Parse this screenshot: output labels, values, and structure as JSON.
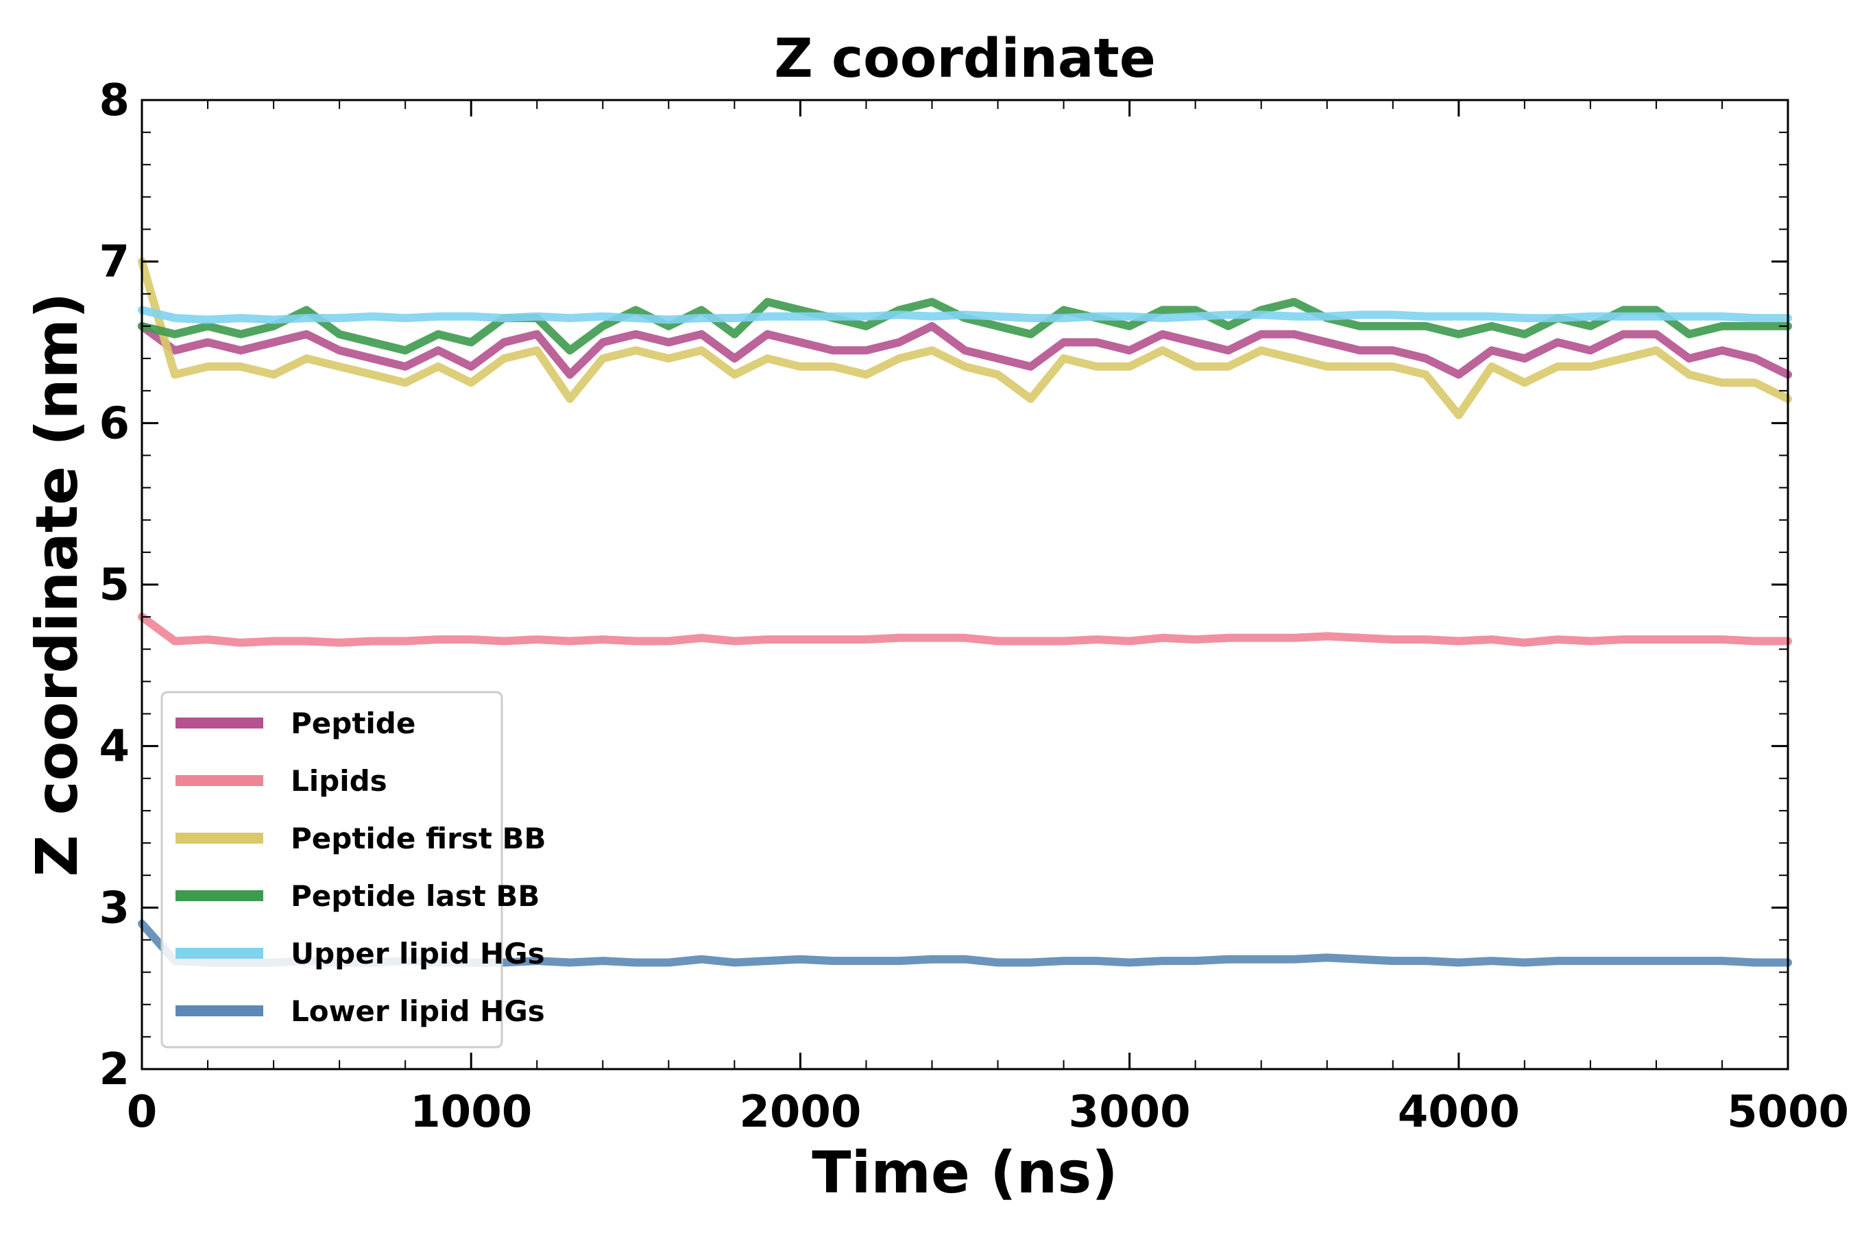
{
  "chart_data": {
    "type": "line",
    "title": "Z coordinate",
    "xlabel": "Time (ns)",
    "ylabel": "Z coordinate (nm)",
    "xlim": [
      0,
      5000
    ],
    "ylim": [
      2,
      8
    ],
    "x_ticks": [
      0,
      1000,
      2000,
      3000,
      4000,
      5000
    ],
    "y_ticks": [
      2,
      3,
      4,
      5,
      6,
      7,
      8
    ],
    "x_tick_labels": [
      "0",
      "1000",
      "2000",
      "3000",
      "4000",
      "5000"
    ],
    "y_tick_labels": [
      "2",
      "3",
      "4",
      "5",
      "6",
      "7",
      "8"
    ],
    "grid": false,
    "legend_position": "lower-left",
    "x": [
      0,
      100,
      200,
      300,
      400,
      500,
      600,
      700,
      800,
      900,
      1000,
      1100,
      1200,
      1300,
      1400,
      1500,
      1600,
      1700,
      1800,
      1900,
      2000,
      2100,
      2200,
      2300,
      2400,
      2500,
      2600,
      2700,
      2800,
      2900,
      3000,
      3100,
      3200,
      3300,
      3400,
      3500,
      3600,
      3700,
      3800,
      3900,
      4000,
      4100,
      4200,
      4300,
      4400,
      4500,
      4600,
      4700,
      4800,
      4900,
      5000
    ],
    "series": [
      {
        "name": "Peptide",
        "color": "#b5528f",
        "values": [
          6.6,
          6.45,
          6.5,
          6.45,
          6.5,
          6.55,
          6.45,
          6.4,
          6.35,
          6.45,
          6.35,
          6.5,
          6.55,
          6.3,
          6.5,
          6.55,
          6.5,
          6.55,
          6.4,
          6.55,
          6.5,
          6.45,
          6.45,
          6.5,
          6.6,
          6.45,
          6.4,
          6.35,
          6.5,
          6.5,
          6.45,
          6.55,
          6.5,
          6.45,
          6.55,
          6.55,
          6.5,
          6.45,
          6.45,
          6.4,
          6.3,
          6.45,
          6.4,
          6.5,
          6.45,
          6.55,
          6.55,
          6.4,
          6.45,
          6.4,
          6.3
        ]
      },
      {
        "name": "Lipids",
        "color": "#f08497",
        "values": [
          4.8,
          4.65,
          4.66,
          4.64,
          4.65,
          4.65,
          4.64,
          4.65,
          4.65,
          4.66,
          4.66,
          4.65,
          4.66,
          4.65,
          4.66,
          4.65,
          4.65,
          4.67,
          4.65,
          4.66,
          4.66,
          4.66,
          4.66,
          4.67,
          4.67,
          4.67,
          4.65,
          4.65,
          4.65,
          4.66,
          4.65,
          4.67,
          4.66,
          4.67,
          4.67,
          4.67,
          4.68,
          4.67,
          4.66,
          4.66,
          4.65,
          4.66,
          4.64,
          4.66,
          4.65,
          4.66,
          4.66,
          4.66,
          4.66,
          4.65,
          4.65
        ]
      },
      {
        "name": "Peptide first BB",
        "color": "#d9c96a",
        "values": [
          7.0,
          6.3,
          6.35,
          6.35,
          6.3,
          6.4,
          6.35,
          6.3,
          6.25,
          6.35,
          6.25,
          6.4,
          6.45,
          6.15,
          6.4,
          6.45,
          6.4,
          6.45,
          6.3,
          6.4,
          6.35,
          6.35,
          6.3,
          6.4,
          6.45,
          6.35,
          6.3,
          6.15,
          6.4,
          6.35,
          6.35,
          6.45,
          6.35,
          6.35,
          6.45,
          6.4,
          6.35,
          6.35,
          6.35,
          6.3,
          6.05,
          6.35,
          6.25,
          6.35,
          6.35,
          6.4,
          6.45,
          6.3,
          6.25,
          6.25,
          6.15
        ]
      },
      {
        "name": "Peptide last BB",
        "color": "#3e9a4e",
        "values": [
          6.6,
          6.55,
          6.6,
          6.55,
          6.6,
          6.7,
          6.55,
          6.5,
          6.45,
          6.55,
          6.5,
          6.65,
          6.65,
          6.45,
          6.6,
          6.7,
          6.6,
          6.7,
          6.55,
          6.75,
          6.7,
          6.65,
          6.6,
          6.7,
          6.75,
          6.65,
          6.6,
          6.55,
          6.7,
          6.65,
          6.6,
          6.7,
          6.7,
          6.6,
          6.7,
          6.75,
          6.65,
          6.6,
          6.6,
          6.6,
          6.55,
          6.6,
          6.55,
          6.65,
          6.6,
          6.7,
          6.7,
          6.55,
          6.6,
          6.6,
          6.6
        ]
      },
      {
        "name": "Upper lipid HGs",
        "color": "#7fd3f0",
        "values": [
          6.7,
          6.65,
          6.64,
          6.65,
          6.64,
          6.65,
          6.65,
          6.66,
          6.65,
          6.66,
          6.66,
          6.65,
          6.66,
          6.65,
          6.66,
          6.65,
          6.64,
          6.65,
          6.65,
          6.66,
          6.66,
          6.66,
          6.66,
          6.67,
          6.66,
          6.67,
          6.66,
          6.65,
          6.65,
          6.66,
          6.66,
          6.65,
          6.66,
          6.67,
          6.67,
          6.66,
          6.66,
          6.67,
          6.67,
          6.66,
          6.66,
          6.66,
          6.65,
          6.65,
          6.66,
          6.66,
          6.66,
          6.66,
          6.66,
          6.65,
          6.65
        ]
      },
      {
        "name": "Lower lipid HGs",
        "color": "#5b88b5",
        "values": [
          2.9,
          2.67,
          2.66,
          2.66,
          2.66,
          2.67,
          2.66,
          2.66,
          2.67,
          2.66,
          2.66,
          2.66,
          2.67,
          2.66,
          2.67,
          2.66,
          2.66,
          2.68,
          2.66,
          2.67,
          2.68,
          2.67,
          2.67,
          2.67,
          2.68,
          2.68,
          2.66,
          2.66,
          2.67,
          2.67,
          2.66,
          2.67,
          2.67,
          2.68,
          2.68,
          2.68,
          2.69,
          2.68,
          2.67,
          2.67,
          2.66,
          2.67,
          2.66,
          2.67,
          2.67,
          2.67,
          2.67,
          2.67,
          2.67,
          2.66,
          2.66
        ]
      }
    ]
  }
}
